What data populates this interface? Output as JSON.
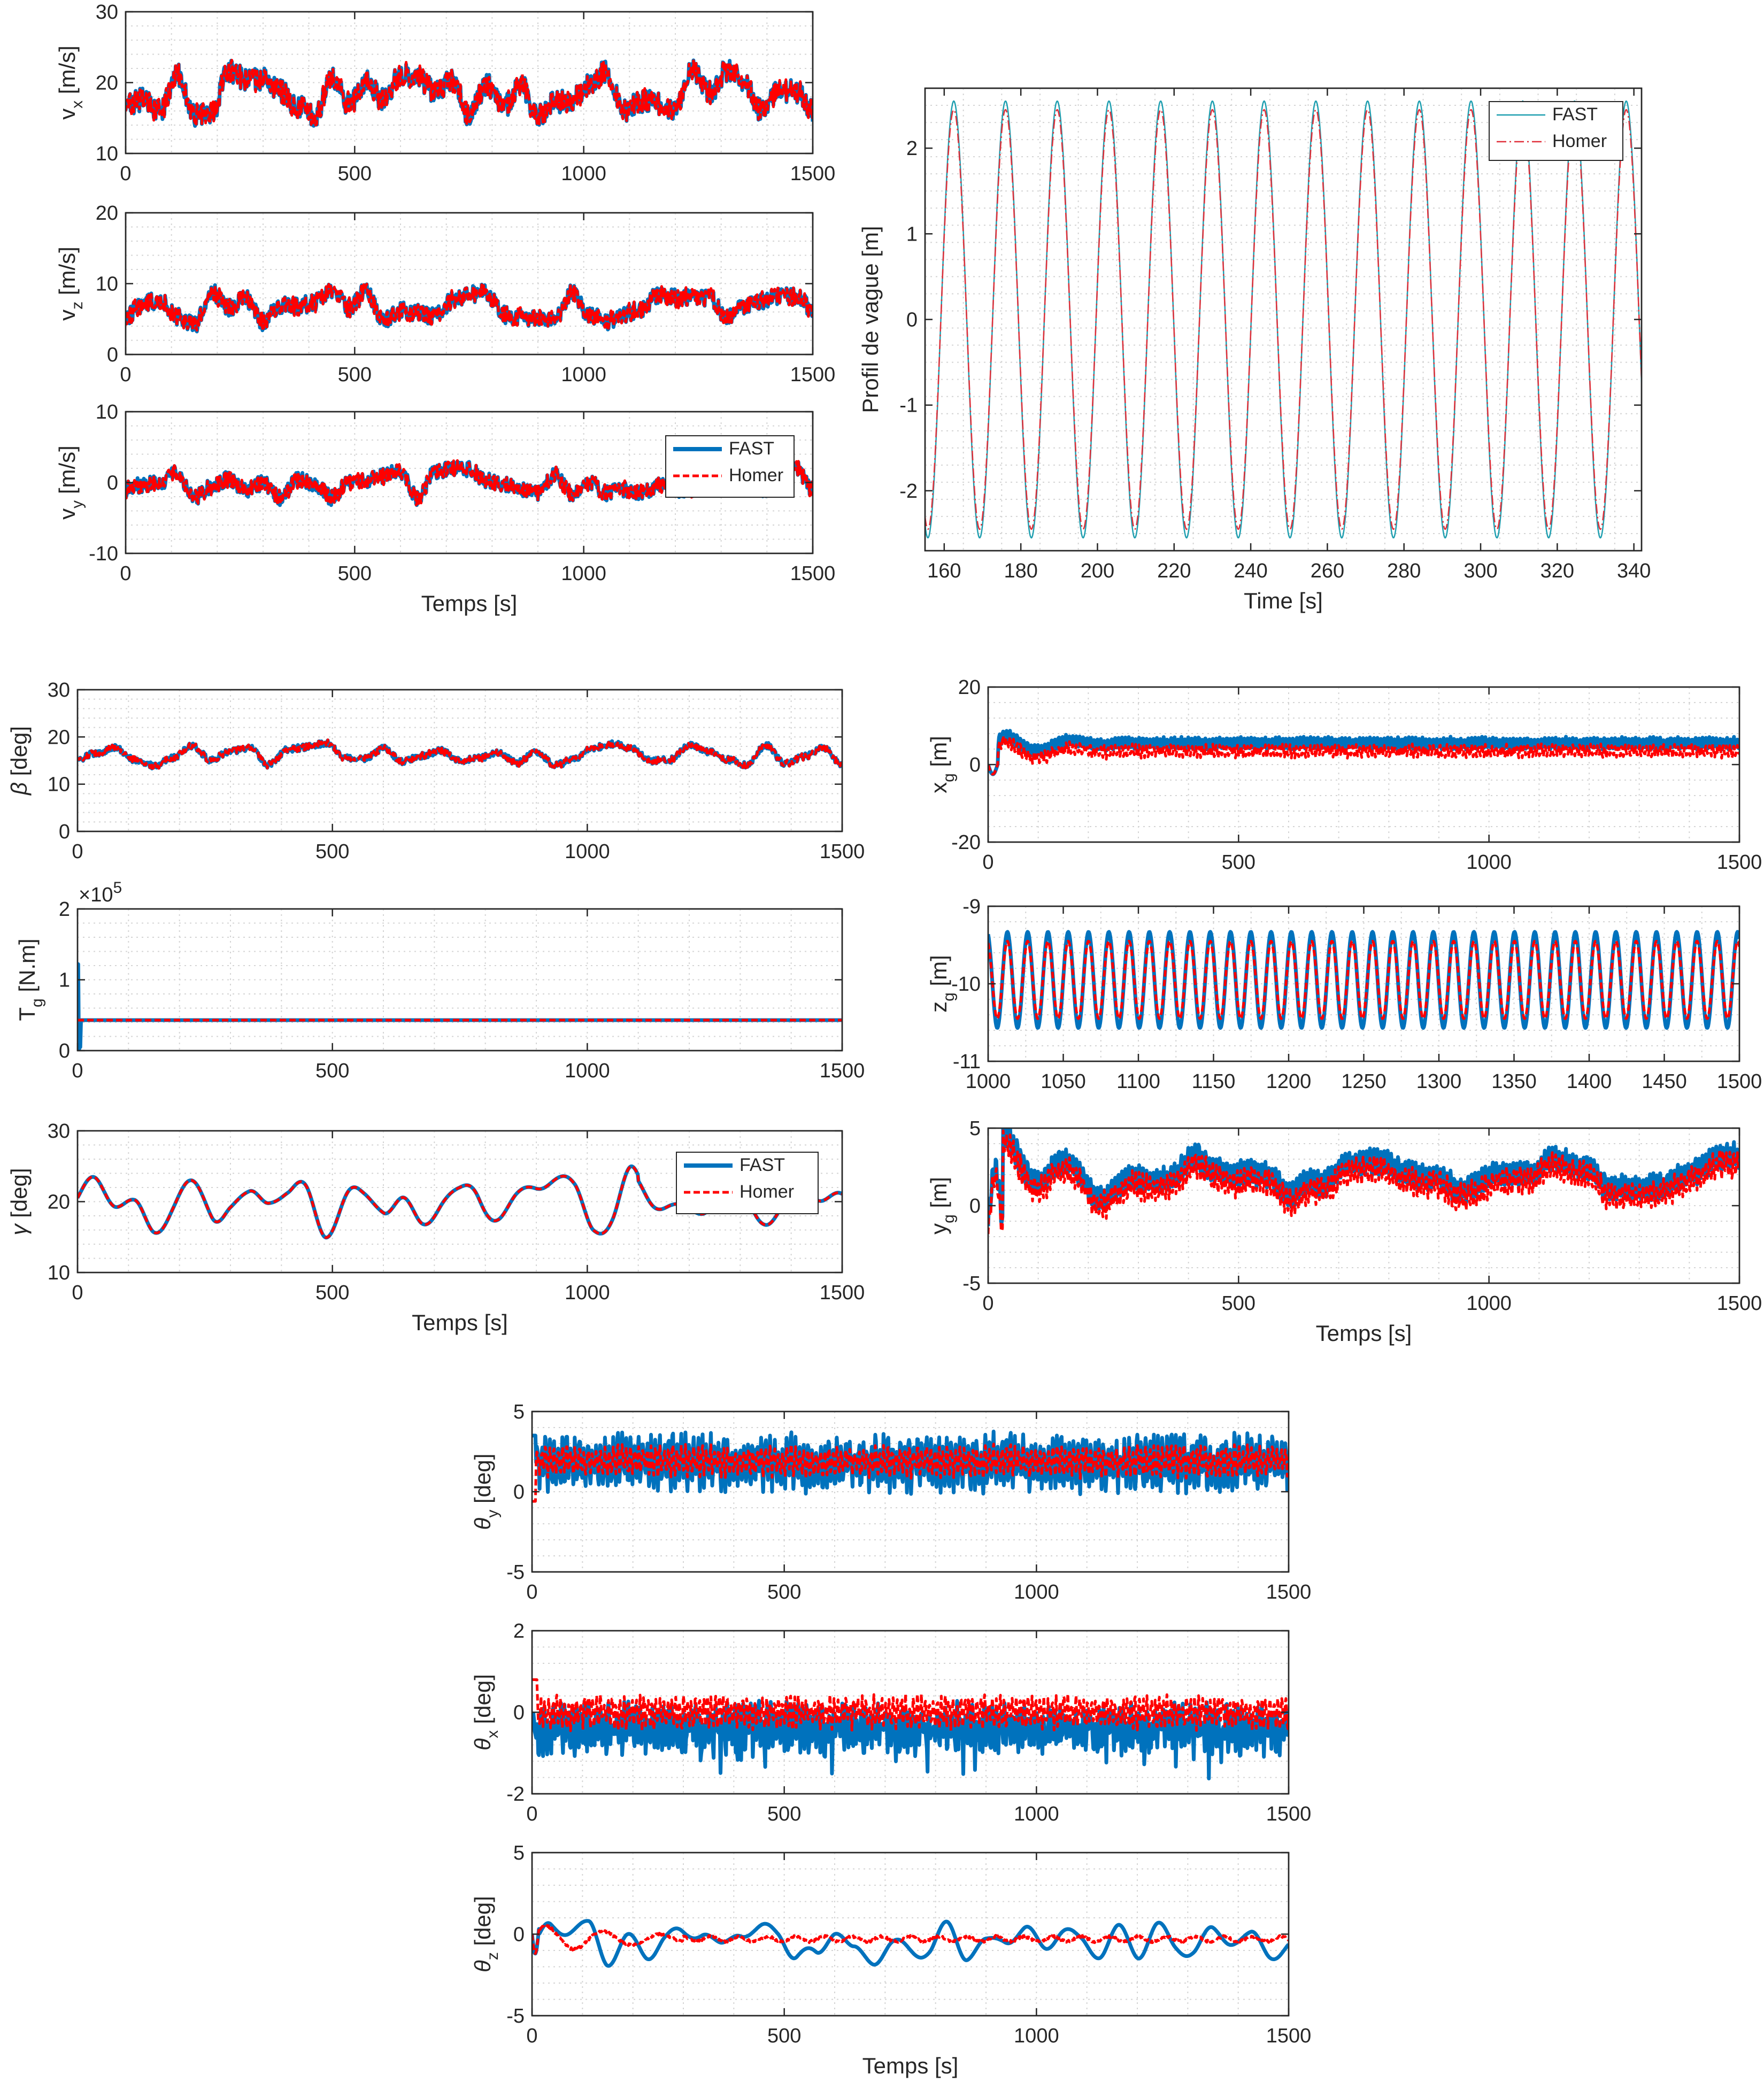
{
  "colors": {
    "fast": "#0072BD",
    "homer": "#FF0000",
    "fast_thin": "#1f9fb0",
    "homer_thin": "#e0303a"
  },
  "legend": {
    "fast": "FAST",
    "homer": "Homer"
  },
  "chart_data": [
    {
      "id": "vx",
      "type": "line",
      "ylabel": "v",
      "ysub": "x",
      "yunit": "[m/s]",
      "xlim": [
        0,
        1500
      ],
      "ylim": [
        10,
        30
      ],
      "xticks": [
        0,
        500,
        1000,
        1500
      ],
      "yticks": [
        10,
        20,
        30
      ],
      "mean": 18.5,
      "amp": 6,
      "noise": "high",
      "seed": 11
    },
    {
      "id": "vz",
      "type": "line",
      "ylabel": "v",
      "ysub": "z",
      "yunit": "[m/s]",
      "xlim": [
        0,
        1500
      ],
      "ylim": [
        0,
        20
      ],
      "xticks": [
        0,
        500,
        1000,
        1500
      ],
      "yticks": [
        0,
        10,
        20
      ],
      "mean": 6.5,
      "amp": 4.5,
      "noise": "high",
      "seed": 23
    },
    {
      "id": "vy",
      "type": "line",
      "ylabel": "v",
      "ysub": "y",
      "yunit": "[m/s]",
      "xlim": [
        0,
        1500
      ],
      "ylim": [
        -10,
        10
      ],
      "xticks": [
        0,
        500,
        1000,
        1500
      ],
      "yticks": [
        -10,
        0,
        10
      ],
      "mean": 0,
      "amp": 4,
      "noise": "high",
      "seed": 37,
      "legend": true,
      "xlabel": "Temps [s]"
    },
    {
      "id": "wave",
      "type": "line",
      "ylabel": "Profil de vague [m]",
      "xlim": [
        155,
        342
      ],
      "ylim": [
        -2.7,
        2.7
      ],
      "xticks": [
        160,
        180,
        200,
        220,
        240,
        260,
        280,
        300,
        320,
        340
      ],
      "yticks": [
        -2,
        -1,
        0,
        1,
        2
      ],
      "amplitude": 2.5,
      "period": 13.5,
      "legend": true,
      "xlabel": "Time [s]"
    },
    {
      "id": "beta",
      "type": "line",
      "ylabel": "β",
      "yunit": "[deg]",
      "xlim": [
        0,
        1500
      ],
      "ylim": [
        0,
        30
      ],
      "xticks": [
        0,
        500,
        1000,
        1500
      ],
      "yticks": [
        0,
        10,
        20,
        30
      ],
      "mean": 16.5,
      "amp": 5,
      "noise": "mid",
      "seed": 41
    },
    {
      "id": "tg",
      "type": "line",
      "ylabel": "T",
      "ysub": "g",
      "yunit": "[N.m]",
      "xlim": [
        0,
        1500
      ],
      "ylim": [
        0,
        2
      ],
      "xticks": [
        0,
        500,
        1000,
        1500
      ],
      "yticks": [
        0,
        1,
        2
      ],
      "exponent": "5",
      "constant": 0.43,
      "spike": 1.22
    },
    {
      "id": "gamma",
      "type": "line",
      "ylabel": "γ",
      "yunit": "[deg]",
      "xlim": [
        0,
        1500
      ],
      "ylim": [
        10,
        30
      ],
      "xticks": [
        0,
        500,
        1000,
        1500
      ],
      "yticks": [
        10,
        20,
        30
      ],
      "mean": 20,
      "amp": 4.5,
      "noise": "smooth",
      "seed": 53,
      "legend": true,
      "xlabel": "Temps [s]"
    },
    {
      "id": "xg",
      "type": "line",
      "ylabel": "x",
      "ysub": "g",
      "yunit": "[m]",
      "xlim": [
        0,
        1500
      ],
      "ylim": [
        -20,
        20
      ],
      "xticks": [
        0,
        500,
        1000,
        1500
      ],
      "yticks": [
        -20,
        0,
        20
      ],
      "fast_level": 5.5,
      "homer_level": 3.5
    },
    {
      "id": "zg",
      "type": "line",
      "ylabel": "z",
      "ysub": "g",
      "yunit": "[m]",
      "xlim": [
        1000,
        1500
      ],
      "ylim": [
        -11,
        -9
      ],
      "xticks": [
        1000,
        1050,
        1100,
        1150,
        1200,
        1250,
        1300,
        1350,
        1400,
        1450,
        1500
      ],
      "yticks": [
        -11,
        -10,
        -9
      ],
      "center": -9.95,
      "fast_amp": 0.62,
      "homer_amp": 0.5,
      "period": 13.5
    },
    {
      "id": "yg",
      "type": "line",
      "ylabel": "y",
      "ysub": "g",
      "yunit": "[m]",
      "xlim": [
        0,
        1500
      ],
      "ylim": [
        -5,
        5
      ],
      "xticks": [
        0,
        500,
        1000,
        1500
      ],
      "yticks": [
        -5,
        0,
        5
      ],
      "level": 2,
      "xlabel": "Temps [s]"
    },
    {
      "id": "thy",
      "type": "line",
      "ylabel": "θ",
      "ysub": "y",
      "yunit": "[deg]",
      "xlim": [
        0,
        1500
      ],
      "ylim": [
        -5,
        5
      ],
      "xticks": [
        0,
        500,
        1000,
        1500
      ],
      "yticks": [
        -5,
        0,
        5
      ],
      "fast_mean": 1.8,
      "homer_mean": 1.9,
      "seed": 61
    },
    {
      "id": "thx",
      "type": "line",
      "ylabel": "θ",
      "ysub": "x",
      "yunit": "[deg]",
      "xlim": [
        0,
        1500
      ],
      "ylim": [
        -2,
        2
      ],
      "xticks": [
        0,
        500,
        1000,
        1500
      ],
      "yticks": [
        -2,
        0,
        2
      ],
      "fast_mean": -0.4,
      "homer_mean": 0,
      "seed": 71
    },
    {
      "id": "thz",
      "type": "line",
      "ylabel": "θ",
      "ysub": "z",
      "yunit": "[deg]",
      "xlim": [
        0,
        1500
      ],
      "ylim": [
        -5,
        5
      ],
      "xticks": [
        0,
        500,
        1000,
        1500
      ],
      "yticks": [
        -5,
        0,
        5
      ],
      "fast_mean": -0.5,
      "homer_mean": -0.3,
      "seed": 83,
      "xlabel": "Temps [s]"
    }
  ]
}
